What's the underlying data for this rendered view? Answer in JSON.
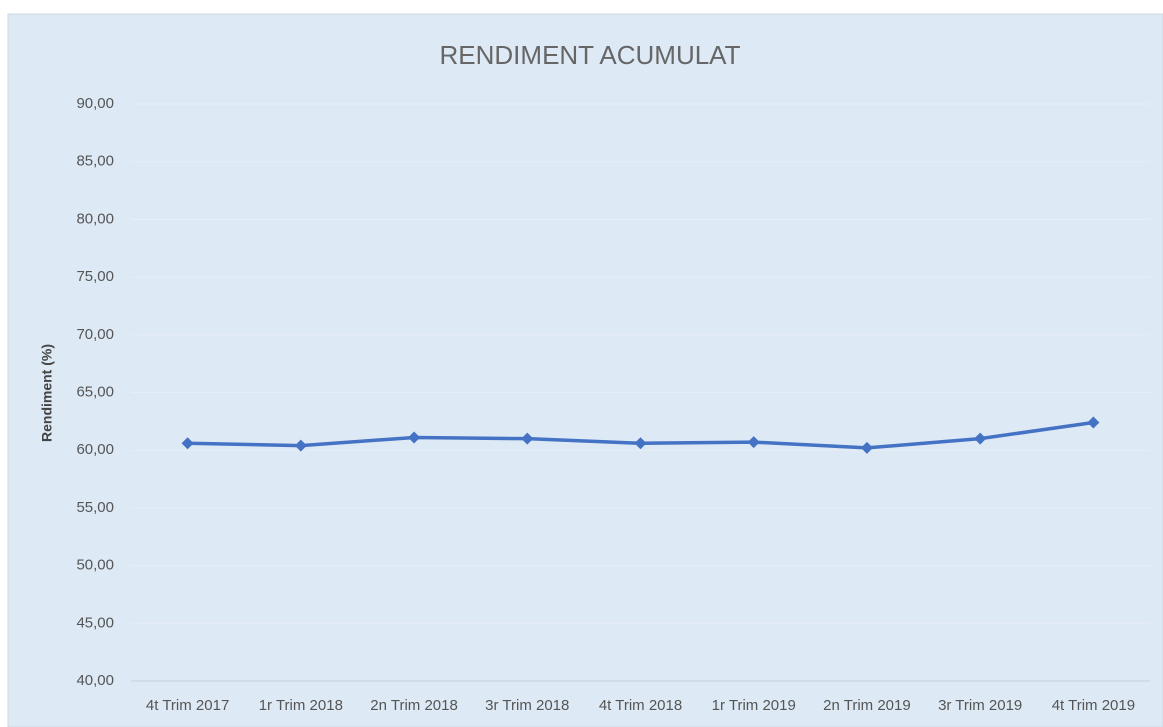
{
  "chart_data": {
    "type": "line",
    "title": "RENDIMENT ACUMULAT",
    "y_label": "Rendiment (%)",
    "categories": [
      "4t Trim 2017",
      "1r Trim 2018",
      "2n Trim 2018",
      "3r Trim 2018",
      "4t Trim 2018",
      "1r Trim 2019",
      "2n Trim 2019",
      "3r Trim 2019",
      "4t Trim 2019"
    ],
    "series": [
      {
        "name": "Rendiment",
        "color": "#4472c4",
        "values": [
          60.6,
          60.4,
          61.1,
          61.0,
          60.6,
          60.7,
          60.2,
          61.0,
          62.4
        ]
      }
    ],
    "ylim": [
      40,
      90
    ],
    "yticks": [
      {
        "value": 40,
        "label": "40,00"
      },
      {
        "value": 45,
        "label": "45,00"
      },
      {
        "value": 50,
        "label": "50,00"
      },
      {
        "value": 55,
        "label": "55,00"
      },
      {
        "value": 60,
        "label": "60,00"
      },
      {
        "value": 65,
        "label": "65,00"
      },
      {
        "value": 70,
        "label": "70,00"
      },
      {
        "value": 75,
        "label": "75,00"
      },
      {
        "value": 80,
        "label": "80,00"
      },
      {
        "value": 85,
        "label": "85,00"
      },
      {
        "value": 90,
        "label": "90,00"
      }
    ],
    "grid": true
  }
}
